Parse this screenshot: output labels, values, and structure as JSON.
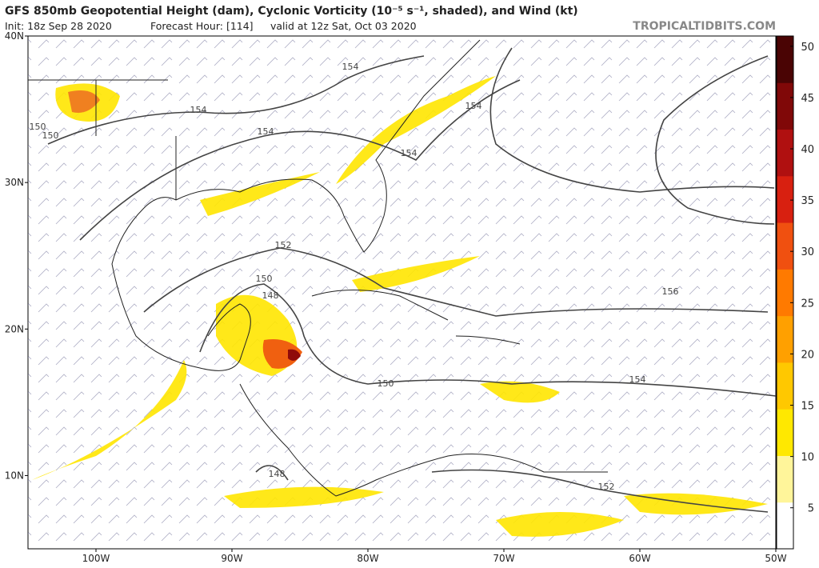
{
  "header": {
    "title": "GFS 850mb Geopotential Height (dam), Cyclonic Vorticity (10⁻⁵ s⁻¹, shaded), and Wind (kt)",
    "init": "Init: 18z Sep 28 2020",
    "forecast_hour": "Forecast Hour: [114]",
    "valid": "valid at 12z Sat, Oct 03 2020",
    "site": "TROPICALTIDBITS.COM"
  },
  "map": {
    "xlim": [
      -105,
      -50
    ],
    "ylim": [
      5,
      40
    ],
    "xticks": [
      {
        "value": -100,
        "label": "100W"
      },
      {
        "value": -90,
        "label": "90W"
      },
      {
        "value": -80,
        "label": "80W"
      },
      {
        "value": -70,
        "label": "70W"
      },
      {
        "value": -60,
        "label": "60W"
      },
      {
        "value": -50,
        "label": "50W"
      }
    ],
    "yticks": [
      {
        "value": 10,
        "label": "10N"
      },
      {
        "value": 20,
        "label": "20N"
      },
      {
        "value": 30,
        "label": "30N"
      },
      {
        "value": 40,
        "label": "40N"
      }
    ],
    "contour_labels": [
      154,
      154,
      154,
      154,
      154,
      150,
      150,
      152,
      150,
      148,
      156,
      150,
      154,
      148,
      152
    ]
  },
  "colorbar": {
    "lim": [
      1,
      51
    ],
    "ticks": [
      5,
      10,
      15,
      20,
      25,
      30,
      35,
      40,
      45,
      50
    ],
    "colors": [
      "#ffffff",
      "#fff59a",
      "#ffe800",
      "#ffc800",
      "#ffa000",
      "#ff7a00",
      "#f05010",
      "#d82010",
      "#b01010",
      "#800808",
      "#4a0404"
    ]
  }
}
